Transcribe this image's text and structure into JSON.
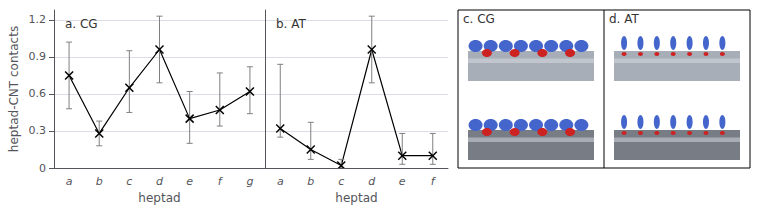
{
  "chart_data": [
    {
      "type": "line",
      "title": "a. CG",
      "categories": [
        "a",
        "b",
        "c",
        "d",
        "e",
        "f",
        "g"
      ],
      "series": [
        {
          "values": [
            0.75,
            0.28,
            0.65,
            0.96,
            0.4,
            0.47,
            0.62
          ],
          "yerr_low": [
            0.27,
            0.1,
            0.2,
            0.27,
            0.2,
            0.13,
            0.18
          ],
          "yerr_high": [
            0.27,
            0.1,
            0.3,
            0.27,
            0.22,
            0.3,
            0.2
          ],
          "color": "black",
          "marker": "x"
        }
      ],
      "xlabel": "heptad",
      "ylabel": "heptad-CNT contacts",
      "ylim": [
        0,
        1.28
      ],
      "yticks": [
        0,
        0.3,
        0.6,
        0.9,
        1.2
      ]
    },
    {
      "type": "line",
      "title": "b. AT",
      "categories": [
        "a",
        "b",
        "c",
        "d",
        "e",
        "f"
      ],
      "series": [
        {
          "values": [
            0.32,
            0.15,
            0.02,
            0.96,
            0.1,
            0.1
          ],
          "yerr_low": [
            0.07,
            0.08,
            0.02,
            0.27,
            0.07,
            0.07
          ],
          "yerr_high": [
            0.52,
            0.22,
            0.05,
            0.27,
            0.18,
            0.18
          ],
          "color": "black",
          "marker": "x"
        }
      ],
      "xlabel": "heptad",
      "ylim": [
        0,
        1.28
      ],
      "yticks": [
        0,
        0.3,
        0.6,
        0.9,
        1.2
      ],
      "tick_labels": "x"
    },
    {
      "type": "illustration",
      "panels": [
        "c. CG",
        "d. AT"
      ],
      "colors": [
        "#4466cc",
        "#cc2222"
      ]
    }
  ]
}
